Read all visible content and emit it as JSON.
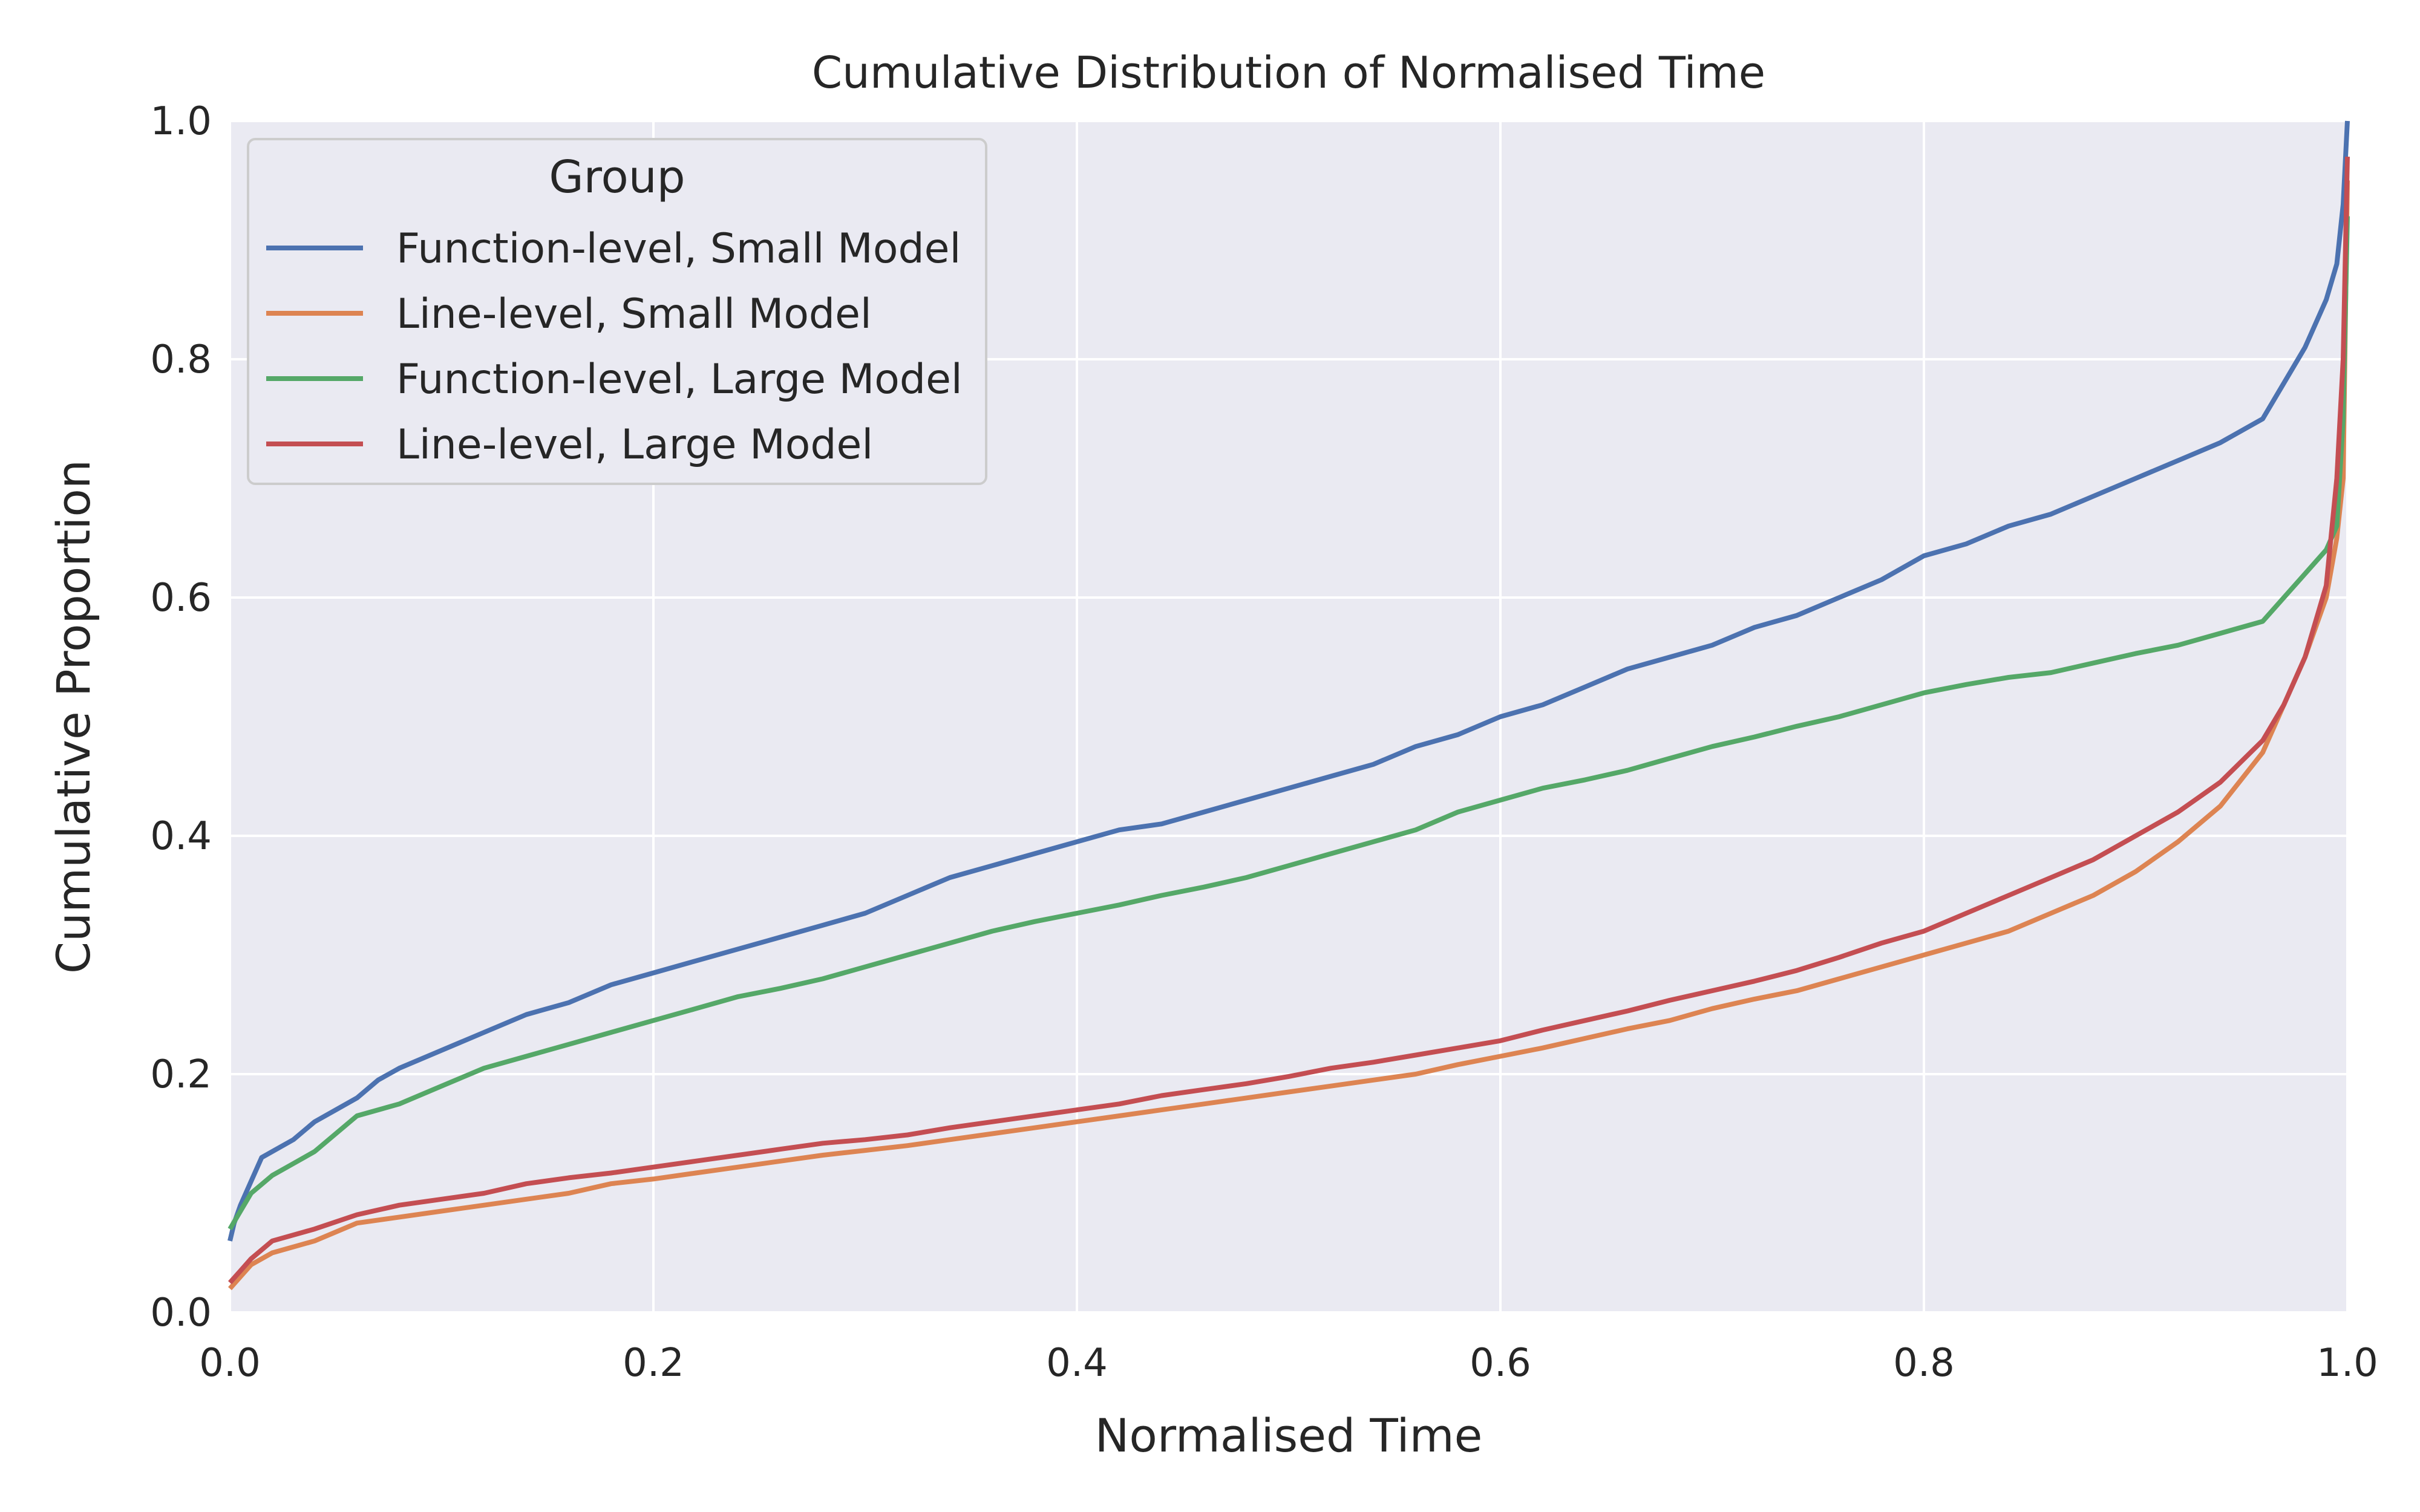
{
  "chart_data": {
    "type": "line",
    "title": "Cumulative Distribution of Normalised Time",
    "xlabel": "Normalised Time",
    "ylabel": "Cumulative Proportion",
    "xlim": [
      0.0,
      1.0
    ],
    "ylim": [
      0.0,
      1.0
    ],
    "xticks": [
      "0.0",
      "0.2",
      "0.4",
      "0.6",
      "0.8",
      "1.0"
    ],
    "yticks": [
      "0.0",
      "0.2",
      "0.4",
      "0.6",
      "0.8",
      "1.0"
    ],
    "grid": true,
    "legend": {
      "title": "Group",
      "position": "top-left"
    },
    "series": [
      {
        "name": "Function-level, Small Model",
        "color": "#4c72b0",
        "points": [
          [
            0.0,
            0.06
          ],
          [
            0.002,
            0.075
          ],
          [
            0.005,
            0.09
          ],
          [
            0.01,
            0.11
          ],
          [
            0.015,
            0.13
          ],
          [
            0.02,
            0.135
          ],
          [
            0.03,
            0.145
          ],
          [
            0.04,
            0.16
          ],
          [
            0.05,
            0.17
          ],
          [
            0.06,
            0.18
          ],
          [
            0.07,
            0.195
          ],
          [
            0.08,
            0.205
          ],
          [
            0.1,
            0.22
          ],
          [
            0.12,
            0.235
          ],
          [
            0.14,
            0.25
          ],
          [
            0.16,
            0.26
          ],
          [
            0.18,
            0.275
          ],
          [
            0.2,
            0.285
          ],
          [
            0.22,
            0.295
          ],
          [
            0.24,
            0.305
          ],
          [
            0.26,
            0.315
          ],
          [
            0.28,
            0.325
          ],
          [
            0.3,
            0.335
          ],
          [
            0.32,
            0.35
          ],
          [
            0.34,
            0.365
          ],
          [
            0.36,
            0.375
          ],
          [
            0.38,
            0.385
          ],
          [
            0.4,
            0.395
          ],
          [
            0.42,
            0.405
          ],
          [
            0.44,
            0.41
          ],
          [
            0.46,
            0.42
          ],
          [
            0.48,
            0.43
          ],
          [
            0.5,
            0.44
          ],
          [
            0.52,
            0.45
          ],
          [
            0.54,
            0.46
          ],
          [
            0.56,
            0.475
          ],
          [
            0.58,
            0.485
          ],
          [
            0.6,
            0.5
          ],
          [
            0.62,
            0.51
          ],
          [
            0.64,
            0.525
          ],
          [
            0.66,
            0.54
          ],
          [
            0.68,
            0.55
          ],
          [
            0.7,
            0.56
          ],
          [
            0.72,
            0.575
          ],
          [
            0.74,
            0.585
          ],
          [
            0.76,
            0.6
          ],
          [
            0.78,
            0.615
          ],
          [
            0.8,
            0.635
          ],
          [
            0.82,
            0.645
          ],
          [
            0.84,
            0.66
          ],
          [
            0.86,
            0.67
          ],
          [
            0.88,
            0.685
          ],
          [
            0.9,
            0.7
          ],
          [
            0.92,
            0.715
          ],
          [
            0.94,
            0.73
          ],
          [
            0.96,
            0.75
          ],
          [
            0.97,
            0.78
          ],
          [
            0.98,
            0.81
          ],
          [
            0.99,
            0.85
          ],
          [
            0.995,
            0.88
          ],
          [
            0.998,
            0.93
          ],
          [
            1.0,
            1.0
          ]
        ]
      },
      {
        "name": "Line-level, Small Model",
        "color": "#dd8452",
        "points": [
          [
            0.0,
            0.02
          ],
          [
            0.005,
            0.03
          ],
          [
            0.01,
            0.04
          ],
          [
            0.02,
            0.05
          ],
          [
            0.04,
            0.06
          ],
          [
            0.06,
            0.075
          ],
          [
            0.08,
            0.08
          ],
          [
            0.1,
            0.085
          ],
          [
            0.12,
            0.09
          ],
          [
            0.14,
            0.095
          ],
          [
            0.16,
            0.1
          ],
          [
            0.18,
            0.108
          ],
          [
            0.2,
            0.112
          ],
          [
            0.22,
            0.117
          ],
          [
            0.24,
            0.122
          ],
          [
            0.26,
            0.127
          ],
          [
            0.28,
            0.132
          ],
          [
            0.3,
            0.136
          ],
          [
            0.32,
            0.14
          ],
          [
            0.34,
            0.145
          ],
          [
            0.36,
            0.15
          ],
          [
            0.38,
            0.155
          ],
          [
            0.4,
            0.16
          ],
          [
            0.42,
            0.165
          ],
          [
            0.44,
            0.17
          ],
          [
            0.46,
            0.175
          ],
          [
            0.48,
            0.18
          ],
          [
            0.5,
            0.185
          ],
          [
            0.52,
            0.19
          ],
          [
            0.54,
            0.195
          ],
          [
            0.56,
            0.2
          ],
          [
            0.58,
            0.208
          ],
          [
            0.6,
            0.215
          ],
          [
            0.62,
            0.222
          ],
          [
            0.64,
            0.23
          ],
          [
            0.66,
            0.238
          ],
          [
            0.68,
            0.245
          ],
          [
            0.7,
            0.255
          ],
          [
            0.72,
            0.263
          ],
          [
            0.74,
            0.27
          ],
          [
            0.76,
            0.28
          ],
          [
            0.78,
            0.29
          ],
          [
            0.8,
            0.3
          ],
          [
            0.82,
            0.31
          ],
          [
            0.84,
            0.32
          ],
          [
            0.86,
            0.335
          ],
          [
            0.88,
            0.35
          ],
          [
            0.9,
            0.37
          ],
          [
            0.92,
            0.395
          ],
          [
            0.94,
            0.425
          ],
          [
            0.96,
            0.47
          ],
          [
            0.97,
            0.51
          ],
          [
            0.98,
            0.55
          ],
          [
            0.99,
            0.6
          ],
          [
            0.995,
            0.65
          ],
          [
            0.998,
            0.7
          ],
          [
            1.0,
            0.95
          ]
        ]
      },
      {
        "name": "Function-level, Large Model",
        "color": "#55a868",
        "points": [
          [
            0.0,
            0.07
          ],
          [
            0.005,
            0.085
          ],
          [
            0.01,
            0.1
          ],
          [
            0.02,
            0.115
          ],
          [
            0.03,
            0.125
          ],
          [
            0.04,
            0.135
          ],
          [
            0.05,
            0.15
          ],
          [
            0.06,
            0.165
          ],
          [
            0.08,
            0.175
          ],
          [
            0.1,
            0.19
          ],
          [
            0.12,
            0.205
          ],
          [
            0.14,
            0.215
          ],
          [
            0.16,
            0.225
          ],
          [
            0.18,
            0.235
          ],
          [
            0.2,
            0.245
          ],
          [
            0.22,
            0.255
          ],
          [
            0.24,
            0.265
          ],
          [
            0.26,
            0.272
          ],
          [
            0.28,
            0.28
          ],
          [
            0.3,
            0.29
          ],
          [
            0.32,
            0.3
          ],
          [
            0.34,
            0.31
          ],
          [
            0.36,
            0.32
          ],
          [
            0.38,
            0.328
          ],
          [
            0.4,
            0.335
          ],
          [
            0.42,
            0.342
          ],
          [
            0.44,
            0.35
          ],
          [
            0.46,
            0.357
          ],
          [
            0.48,
            0.365
          ],
          [
            0.5,
            0.375
          ],
          [
            0.52,
            0.385
          ],
          [
            0.54,
            0.395
          ],
          [
            0.56,
            0.405
          ],
          [
            0.58,
            0.42
          ],
          [
            0.6,
            0.43
          ],
          [
            0.62,
            0.44
          ],
          [
            0.64,
            0.447
          ],
          [
            0.66,
            0.455
          ],
          [
            0.68,
            0.465
          ],
          [
            0.7,
            0.475
          ],
          [
            0.72,
            0.483
          ],
          [
            0.74,
            0.492
          ],
          [
            0.76,
            0.5
          ],
          [
            0.78,
            0.51
          ],
          [
            0.8,
            0.52
          ],
          [
            0.82,
            0.527
          ],
          [
            0.84,
            0.533
          ],
          [
            0.86,
            0.537
          ],
          [
            0.88,
            0.545
          ],
          [
            0.9,
            0.553
          ],
          [
            0.92,
            0.56
          ],
          [
            0.94,
            0.57
          ],
          [
            0.96,
            0.58
          ],
          [
            0.97,
            0.6
          ],
          [
            0.98,
            0.62
          ],
          [
            0.99,
            0.64
          ],
          [
            0.995,
            0.66
          ],
          [
            0.998,
            0.75
          ],
          [
            1.0,
            0.92
          ]
        ]
      },
      {
        "name": "Line-level, Large Model",
        "color": "#c44e52",
        "points": [
          [
            0.0,
            0.025
          ],
          [
            0.005,
            0.035
          ],
          [
            0.01,
            0.045
          ],
          [
            0.02,
            0.06
          ],
          [
            0.04,
            0.07
          ],
          [
            0.06,
            0.082
          ],
          [
            0.08,
            0.09
          ],
          [
            0.1,
            0.095
          ],
          [
            0.12,
            0.1
          ],
          [
            0.14,
            0.108
          ],
          [
            0.16,
            0.113
          ],
          [
            0.18,
            0.117
          ],
          [
            0.2,
            0.122
          ],
          [
            0.22,
            0.127
          ],
          [
            0.24,
            0.132
          ],
          [
            0.26,
            0.137
          ],
          [
            0.28,
            0.142
          ],
          [
            0.3,
            0.145
          ],
          [
            0.32,
            0.149
          ],
          [
            0.34,
            0.155
          ],
          [
            0.36,
            0.16
          ],
          [
            0.38,
            0.165
          ],
          [
            0.4,
            0.17
          ],
          [
            0.42,
            0.175
          ],
          [
            0.44,
            0.182
          ],
          [
            0.46,
            0.187
          ],
          [
            0.48,
            0.192
          ],
          [
            0.5,
            0.198
          ],
          [
            0.52,
            0.205
          ],
          [
            0.54,
            0.21
          ],
          [
            0.56,
            0.216
          ],
          [
            0.58,
            0.222
          ],
          [
            0.6,
            0.228
          ],
          [
            0.62,
            0.237
          ],
          [
            0.64,
            0.245
          ],
          [
            0.66,
            0.253
          ],
          [
            0.68,
            0.262
          ],
          [
            0.7,
            0.27
          ],
          [
            0.72,
            0.278
          ],
          [
            0.74,
            0.287
          ],
          [
            0.76,
            0.298
          ],
          [
            0.78,
            0.31
          ],
          [
            0.8,
            0.32
          ],
          [
            0.82,
            0.335
          ],
          [
            0.84,
            0.35
          ],
          [
            0.86,
            0.365
          ],
          [
            0.88,
            0.38
          ],
          [
            0.9,
            0.4
          ],
          [
            0.92,
            0.42
          ],
          [
            0.94,
            0.445
          ],
          [
            0.96,
            0.48
          ],
          [
            0.97,
            0.51
          ],
          [
            0.98,
            0.55
          ],
          [
            0.99,
            0.61
          ],
          [
            0.995,
            0.7
          ],
          [
            0.998,
            0.8
          ],
          [
            1.0,
            0.97
          ]
        ]
      }
    ]
  }
}
